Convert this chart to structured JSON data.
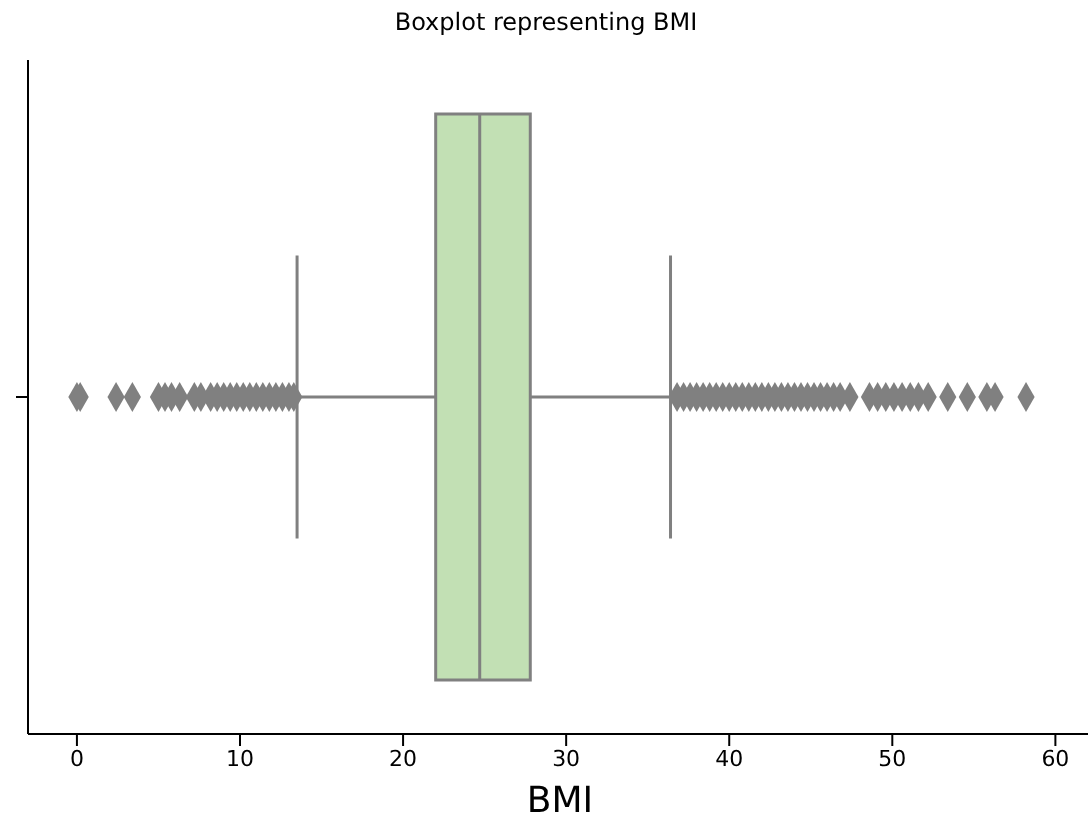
{
  "chart_data": {
    "type": "box",
    "title": "Boxplot representing BMI",
    "xlabel": "BMI",
    "orientation": "horizontal",
    "categories": [
      null
    ],
    "color": "#c2e0b4",
    "marker": "diamond",
    "boxes": [
      {
        "low": 13.5,
        "q1": 22.0,
        "median": 24.7,
        "q3": 27.8,
        "high": 36.4,
        "outliers": [
          0.0,
          0.2,
          2.4,
          3.4,
          5.0,
          5.4,
          5.8,
          6.3,
          7.2,
          7.6,
          8.2,
          8.6,
          9.0,
          9.4,
          9.8,
          10.2,
          10.6,
          11.0,
          11.4,
          11.8,
          12.2,
          12.6,
          13.0,
          13.3,
          36.8,
          37.2,
          37.6,
          38.0,
          38.4,
          38.8,
          39.2,
          39.6,
          40.0,
          40.4,
          40.8,
          41.2,
          41.6,
          42.0,
          42.4,
          42.8,
          43.2,
          43.6,
          44.0,
          44.4,
          44.8,
          45.2,
          45.6,
          46.0,
          46.4,
          46.8,
          47.4,
          48.6,
          49.1,
          49.6,
          50.1,
          50.6,
          51.1,
          51.6,
          52.2,
          53.4,
          54.6,
          55.8,
          56.3,
          58.2
        ]
      }
    ],
    "xlim": [
      -3,
      62
    ],
    "xticks": [
      0,
      10,
      20,
      30,
      40,
      50,
      60
    ]
  }
}
